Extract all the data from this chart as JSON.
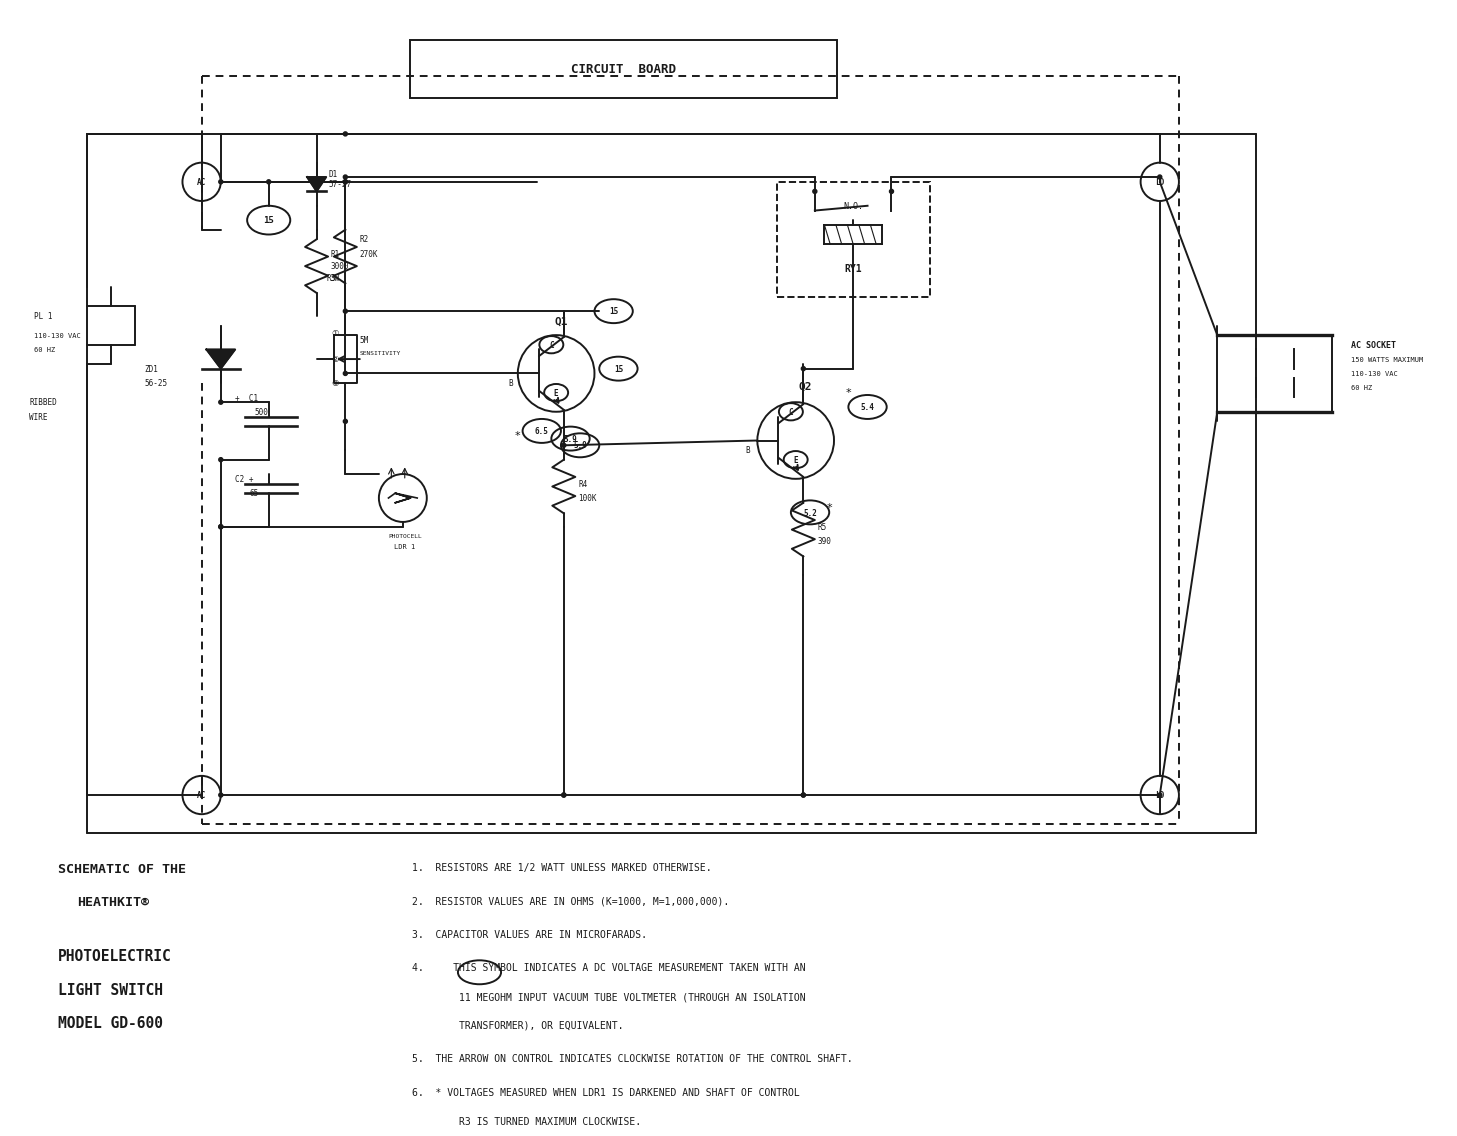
{
  "bg_color": "#ffffff",
  "line_color": "#1a1a1a",
  "title_left_lines": [
    "SCHEMATIC OF THE",
    "HEATHKIT®",
    "",
    "PHOTOELECTRIC",
    "LIGHT SWITCH",
    "MODEL GD-600"
  ],
  "notes": [
    "1.  RESISTORS ARE 1/2 WATT UNLESS MARKED OTHERWISE.",
    "2.  RESISTOR VALUES ARE IN OHMS (K=1000, M=1,000,000).",
    "3.  CAPACITOR VALUES ARE IN MICROFARADS.",
    "4.     THIS SYMBOL INDICATES A DC VOLTAGE MEASUREMENT TAKEN WITH AN",
    "        11 MEGOHM INPUT VACUUM TUBE VOLTMETER (THROUGH AN ISOLATION",
    "        TRANSFORMER), OR EQUIVALENT.",
    "5.  THE ARROW ON CONTROL INDICATES CLOCKWISE ROTATION OF THE CONTROL SHAFT.",
    "6.  * VOLTAGES MEASURED WHEN LDR1 IS DARKENED AND SHAFT OF CONTROL",
    "        R3 IS TURNED MAXIMUM CLOCKWISE."
  ],
  "circuit_board_label": "CIRCUIT  BOARD"
}
